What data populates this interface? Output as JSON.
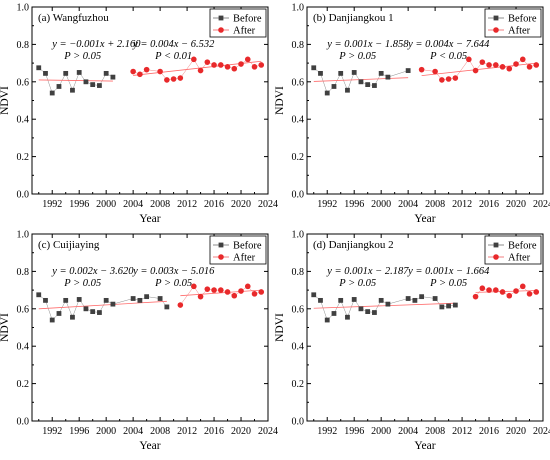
{
  "chart_data": [
    {
      "type": "scatter",
      "panel_label": "(a) Wangfuzhou",
      "xlabel": "Year",
      "ylabel": "NDVI",
      "xlim": [
        1989,
        2024
      ],
      "ylim": [
        0,
        1
      ],
      "xticks": [
        "1992",
        "1996",
        "2000",
        "2004",
        "2008",
        "2012",
        "2016",
        "2020",
        "2024"
      ],
      "yticks": [
        "0.0",
        "0.2",
        "0.4",
        "0.6",
        "0.8",
        "1.0"
      ],
      "legend": {
        "position": "top-right",
        "entries": [
          "Before",
          "After"
        ]
      },
      "series": [
        {
          "name": "Before",
          "color": "#404040",
          "marker": "square",
          "points": [
            [
              1990,
              0.675
            ],
            [
              1991,
              0.645
            ],
            [
              1992,
              0.54
            ],
            [
              1993,
              0.575
            ],
            [
              1994,
              0.645
            ],
            [
              1995,
              0.555
            ],
            [
              1996,
              0.65
            ],
            [
              1997,
              0.6
            ],
            [
              1998,
              0.585
            ],
            [
              1999,
              0.58
            ],
            [
              2000,
              0.645
            ],
            [
              2001,
              0.625
            ]
          ],
          "fit": {
            "equation": "y = −0.001x + 2.160",
            "significance": "P > 0.05",
            "x_range": [
              1990,
              2001
            ],
            "y_range": [
              0.61,
              0.604
            ]
          }
        },
        {
          "name": "After",
          "color": "#e8292b",
          "marker": "circle",
          "points": [
            [
              2004,
              0.655
            ],
            [
              2005,
              0.64
            ],
            [
              2006,
              0.665
            ],
            [
              2008,
              0.655
            ],
            [
              2009,
              0.61
            ],
            [
              2010,
              0.615
            ],
            [
              2011,
              0.62
            ],
            [
              2013,
              0.72
            ],
            [
              2014,
              0.66
            ],
            [
              2015,
              0.705
            ],
            [
              2016,
              0.69
            ],
            [
              2017,
              0.69
            ],
            [
              2018,
              0.68
            ],
            [
              2019,
              0.67
            ],
            [
              2020,
              0.695
            ],
            [
              2021,
              0.72
            ],
            [
              2022,
              0.68
            ],
            [
              2023,
              0.69
            ]
          ],
          "fit": {
            "equation": "y = 0.004x − 6.532",
            "significance": "P < 0.01",
            "x_range": [
              2004,
              2023
            ],
            "y_range": [
              0.634,
              0.71
            ]
          }
        }
      ]
    },
    {
      "type": "scatter",
      "panel_label": "(b) Danjiangkou 1",
      "xlabel": "Year",
      "ylabel": "NDVI",
      "xlim": [
        1989,
        2024
      ],
      "ylim": [
        0,
        1
      ],
      "xticks": [
        "1992",
        "1996",
        "2000",
        "2004",
        "2008",
        "2012",
        "2016",
        "2020",
        "2024"
      ],
      "yticks": [
        "0.0",
        "0.2",
        "0.4",
        "0.6",
        "0.8",
        "1.0"
      ],
      "legend": {
        "position": "top-right",
        "entries": [
          "Before",
          "After"
        ]
      },
      "series": [
        {
          "name": "Before",
          "color": "#404040",
          "marker": "square",
          "points": [
            [
              1990,
              0.675
            ],
            [
              1991,
              0.645
            ],
            [
              1992,
              0.54
            ],
            [
              1993,
              0.575
            ],
            [
              1994,
              0.645
            ],
            [
              1995,
              0.555
            ],
            [
              1996,
              0.65
            ],
            [
              1997,
              0.6
            ],
            [
              1998,
              0.585
            ],
            [
              1999,
              0.58
            ],
            [
              2000,
              0.645
            ],
            [
              2001,
              0.625
            ],
            [
              2004,
              0.66
            ]
          ],
          "fit": {
            "equation": "y = 0.001x − 1.858",
            "significance": "P > 0.05",
            "x_range": [
              1990,
              2004
            ],
            "y_range": [
              0.602,
              0.622
            ]
          }
        },
        {
          "name": "After",
          "color": "#e8292b",
          "marker": "circle",
          "points": [
            [
              2006,
              0.665
            ],
            [
              2008,
              0.655
            ],
            [
              2009,
              0.61
            ],
            [
              2010,
              0.615
            ],
            [
              2011,
              0.62
            ],
            [
              2013,
              0.72
            ],
            [
              2014,
              0.66
            ],
            [
              2015,
              0.705
            ],
            [
              2016,
              0.69
            ],
            [
              2017,
              0.69
            ],
            [
              2018,
              0.68
            ],
            [
              2019,
              0.67
            ],
            [
              2020,
              0.695
            ],
            [
              2021,
              0.72
            ],
            [
              2022,
              0.68
            ],
            [
              2023,
              0.69
            ]
          ],
          "fit": {
            "equation": "y = 0.004x − 7.644",
            "significance": "P < 0.05",
            "x_range": [
              2006,
              2023
            ],
            "y_range": [
              0.633,
              0.7
            ]
          }
        }
      ]
    },
    {
      "type": "scatter",
      "panel_label": "(c) Cuijiaying",
      "xlabel": "Year",
      "ylabel": "NDVI",
      "xlim": [
        1989,
        2024
      ],
      "ylim": [
        0,
        1
      ],
      "xticks": [
        "1992",
        "1996",
        "2000",
        "2004",
        "2008",
        "2012",
        "2016",
        "2020",
        "2024"
      ],
      "yticks": [
        "0.0",
        "0.2",
        "0.4",
        "0.6",
        "0.8",
        "1.0"
      ],
      "legend": {
        "position": "top-right",
        "entries": [
          "Before",
          "After"
        ]
      },
      "series": [
        {
          "name": "Before",
          "color": "#404040",
          "marker": "square",
          "points": [
            [
              1990,
              0.675
            ],
            [
              1991,
              0.645
            ],
            [
              1992,
              0.54
            ],
            [
              1993,
              0.575
            ],
            [
              1994,
              0.645
            ],
            [
              1995,
              0.555
            ],
            [
              1996,
              0.65
            ],
            [
              1997,
              0.6
            ],
            [
              1998,
              0.585
            ],
            [
              1999,
              0.58
            ],
            [
              2000,
              0.645
            ],
            [
              2001,
              0.625
            ],
            [
              2004,
              0.655
            ],
            [
              2005,
              0.645
            ],
            [
              2006,
              0.665
            ],
            [
              2008,
              0.655
            ],
            [
              2009,
              0.61
            ]
          ],
          "fit": {
            "equation": "y = 0.002x − 3.620",
            "significance": "P > 0.05",
            "x_range": [
              1990,
              2009
            ],
            "y_range": [
              0.6,
              0.64
            ]
          }
        },
        {
          "name": "After",
          "color": "#e8292b",
          "marker": "circle",
          "points": [
            [
              2011,
              0.62
            ],
            [
              2013,
              0.72
            ],
            [
              2014,
              0.665
            ],
            [
              2015,
              0.705
            ],
            [
              2016,
              0.7
            ],
            [
              2017,
              0.7
            ],
            [
              2018,
              0.69
            ],
            [
              2019,
              0.67
            ],
            [
              2020,
              0.695
            ],
            [
              2021,
              0.72
            ],
            [
              2022,
              0.68
            ],
            [
              2023,
              0.69
            ]
          ],
          "fit": {
            "equation": "y = 0.003x − 5.016",
            "significance": "P > 0.05",
            "x_range": [
              2011,
              2023
            ],
            "y_range": [
              0.67,
              0.7
            ]
          }
        }
      ]
    },
    {
      "type": "scatter",
      "panel_label": "(d) Danjiangkou 2",
      "xlabel": "Year",
      "ylabel": "NDVI",
      "xlim": [
        1989,
        2024
      ],
      "ylim": [
        0,
        1
      ],
      "xticks": [
        "1992",
        "1996",
        "2000",
        "2004",
        "2008",
        "2012",
        "2016",
        "2020",
        "2024"
      ],
      "yticks": [
        "0.0",
        "0.2",
        "0.4",
        "0.6",
        "0.8",
        "1.0"
      ],
      "legend": {
        "position": "top-right",
        "entries": [
          "Before",
          "After"
        ]
      },
      "series": [
        {
          "name": "Before",
          "color": "#404040",
          "marker": "square",
          "points": [
            [
              1990,
              0.675
            ],
            [
              1991,
              0.645
            ],
            [
              1992,
              0.54
            ],
            [
              1993,
              0.575
            ],
            [
              1994,
              0.645
            ],
            [
              1995,
              0.555
            ],
            [
              1996,
              0.65
            ],
            [
              1997,
              0.6
            ],
            [
              1998,
              0.585
            ],
            [
              1999,
              0.58
            ],
            [
              2000,
              0.645
            ],
            [
              2001,
              0.625
            ],
            [
              2004,
              0.655
            ],
            [
              2005,
              0.645
            ],
            [
              2006,
              0.665
            ],
            [
              2008,
              0.655
            ],
            [
              2009,
              0.61
            ],
            [
              2010,
              0.615
            ],
            [
              2011,
              0.62
            ]
          ],
          "fit": {
            "equation": "y = 0.001x − 2.187",
            "significance": "P > 0.05",
            "x_range": [
              1990,
              2011
            ],
            "y_range": [
              0.603,
              0.63
            ]
          }
        },
        {
          "name": "After",
          "color": "#e8292b",
          "marker": "circle",
          "points": [
            [
              2014,
              0.665
            ],
            [
              2015,
              0.71
            ],
            [
              2016,
              0.7
            ],
            [
              2017,
              0.7
            ],
            [
              2018,
              0.69
            ],
            [
              2019,
              0.67
            ],
            [
              2020,
              0.695
            ],
            [
              2021,
              0.72
            ],
            [
              2022,
              0.68
            ],
            [
              2023,
              0.69
            ]
          ],
          "fit": {
            "equation": "y = 0.001x − 1.664",
            "significance": "P > 0.05",
            "x_range": [
              2014,
              2023
            ],
            "y_range": [
              0.688,
              0.698
            ]
          }
        }
      ]
    }
  ]
}
